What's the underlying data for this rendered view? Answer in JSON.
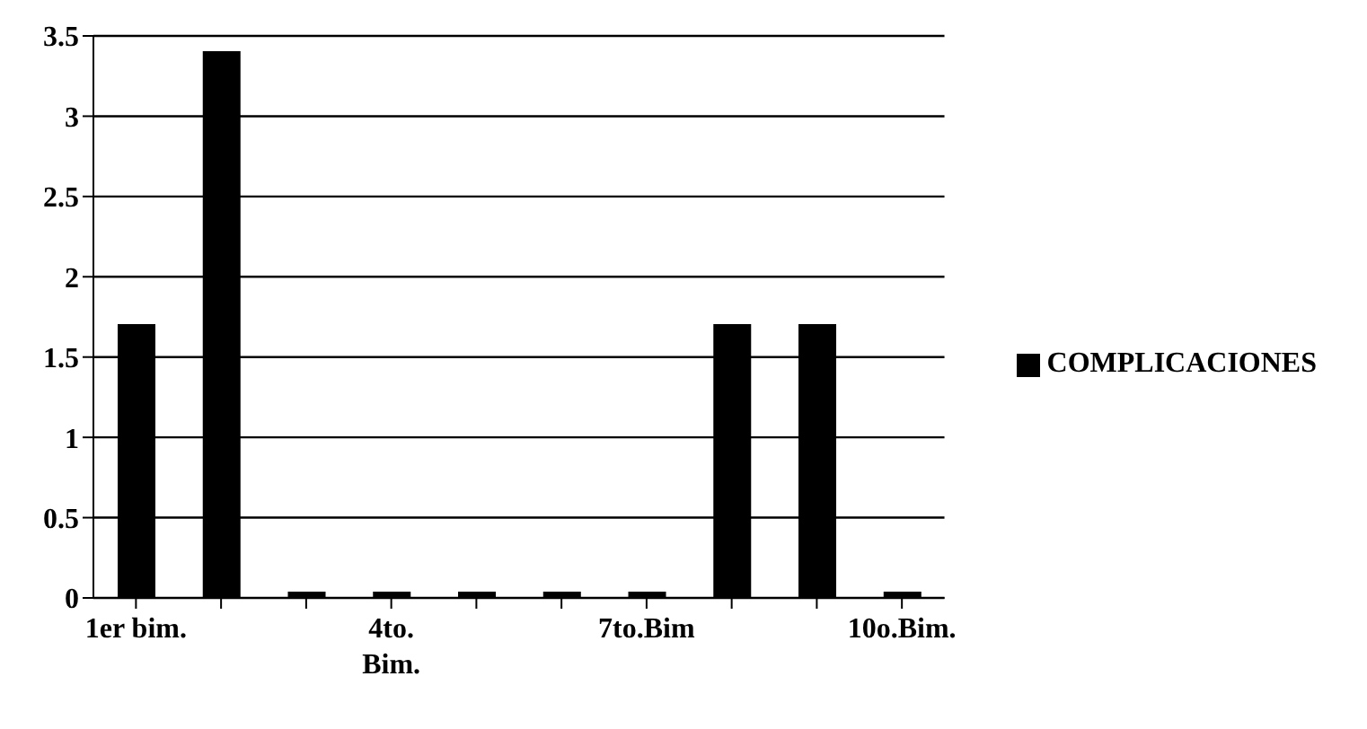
{
  "chart_data": {
    "type": "bar",
    "categories": [
      "1er bim.",
      null,
      null,
      "4to. Bim.",
      null,
      null,
      "7to.Bim",
      null,
      null,
      "10o.Bim."
    ],
    "series": [
      {
        "name": "COMPLICACIONES",
        "color": "#000000",
        "values": [
          1.7,
          3.4,
          0,
          0,
          0,
          0,
          0,
          1.7,
          1.7,
          0
        ]
      }
    ],
    "ylim": [
      0,
      3.5
    ],
    "yticks": [
      0,
      0.5,
      1,
      1.5,
      2,
      2.5,
      3,
      3.5
    ],
    "grid": "y",
    "legend": "right"
  }
}
